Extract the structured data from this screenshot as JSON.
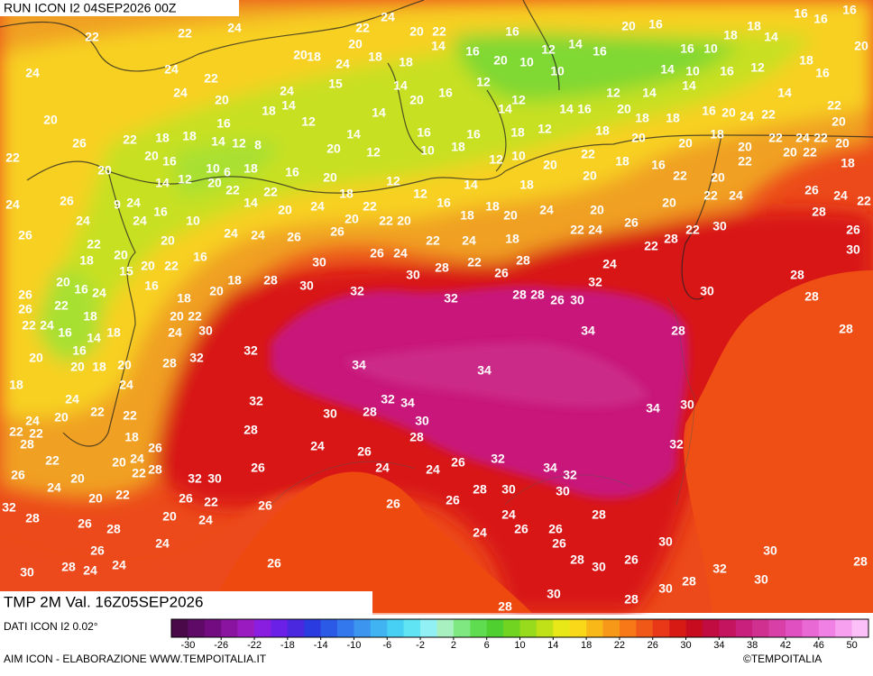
{
  "header": {
    "run": "RUN ICON I2 04SEP2026 00Z"
  },
  "footer": {
    "field": "TMP 2M Val. 16Z05SEP2026",
    "source": "DATI ICON I2 0.02°",
    "credit": "AIM ICON - ELABORAZIONE WWW.TEMPOITALIA.IT",
    "copyright": "©TEMPOITALIA"
  },
  "map_labels": [
    22,
    22,
    24,
    22,
    24,
    20,
    22,
    20,
    14,
    16,
    16,
    12,
    14,
    16,
    20,
    16,
    16,
    10,
    18,
    18,
    14,
    16,
    16,
    16,
    20,
    24,
    24,
    22,
    20,
    18,
    24,
    18,
    18,
    20,
    10,
    10,
    14,
    10,
    16,
    12,
    18,
    16,
    24,
    20,
    24,
    15,
    14,
    16,
    12,
    12,
    12,
    14,
    14,
    14,
    22,
    20,
    16,
    18,
    14,
    14,
    20,
    14,
    14,
    16,
    20,
    18,
    18,
    16,
    20,
    24,
    22,
    20,
    26,
    22,
    18,
    18,
    14,
    12,
    8,
    12,
    14,
    16,
    16,
    18,
    12,
    18,
    20,
    20,
    18,
    22,
    24,
    22,
    20,
    22,
    20,
    16,
    10,
    6,
    18,
    20,
    12,
    10,
    18,
    12,
    10,
    20,
    22,
    18,
    16,
    20,
    22,
    20,
    22,
    18,
    20,
    14,
    12,
    20,
    22,
    22,
    16,
    20,
    12,
    14,
    18,
    20,
    22,
    20,
    24,
    26,
    9,
    24,
    16,
    10,
    14,
    20,
    24,
    18,
    22,
    12,
    16,
    18,
    18,
    20,
    24,
    20,
    20,
    22,
    24,
    26,
    24,
    22,
    28,
    26,
    24,
    24,
    20,
    24,
    24,
    26,
    26,
    20,
    22,
    20,
    22,
    24,
    18,
    22,
    24,
    26,
    22,
    28,
    22,
    30,
    26,
    30,
    22,
    20,
    18,
    15,
    20,
    22,
    16,
    30,
    26,
    24,
    30,
    28,
    22,
    26,
    28,
    24,
    26,
    20,
    16,
    24,
    16,
    18,
    20,
    18,
    28,
    30,
    32,
    32,
    28,
    28,
    26,
    30,
    32,
    30,
    28,
    28,
    26,
    22,
    18,
    20,
    22,
    22,
    24,
    16,
    14,
    18,
    24,
    30,
    34,
    28,
    28,
    20,
    16,
    18,
    20,
    20,
    28,
    32,
    32,
    34,
    34,
    18,
    24,
    24,
    32,
    32,
    34,
    30,
    28,
    30,
    34,
    30,
    24,
    20,
    22,
    22,
    22,
    22,
    28,
    28,
    24,
    26,
    32,
    28,
    18,
    26,
    22,
    20,
    24,
    22,
    28,
    26,
    20,
    32,
    30,
    26,
    24,
    24,
    26,
    32,
    34,
    32,
    24,
    20,
    22,
    26,
    22,
    32,
    28,
    20,
    24,
    26,
    26,
    26,
    28,
    30,
    30,
    24,
    28,
    26,
    28,
    24,
    24,
    26,
    26,
    26,
    30,
    30,
    26,
    30,
    28,
    24,
    24,
    26,
    28,
    30,
    26,
    32,
    28,
    28,
    30,
    30,
    30,
    28,
    28
  ],
  "colorbar": {
    "lim": [
      -32,
      52
    ],
    "ticks": [
      -30,
      -26,
      -22,
      -18,
      -14,
      -10,
      -6,
      -2,
      2,
      6,
      10,
      14,
      18,
      22,
      26,
      30,
      34,
      38,
      42,
      46,
      50
    ],
    "colors": [
      "#4a0a4a",
      "#5e0a66",
      "#720c80",
      "#8a14a0",
      "#9a1cc0",
      "#8a1ee0",
      "#6a20e6",
      "#4a28e0",
      "#2a3ce0",
      "#2a5ae6",
      "#3478ee",
      "#3c96f0",
      "#40b4f2",
      "#48d0f4",
      "#60e4f4",
      "#90f0f4",
      "#a8f0c0",
      "#80e880",
      "#60dc50",
      "#50d030",
      "#70d420",
      "#98da1c",
      "#c0e018",
      "#e8e818",
      "#f8d818",
      "#f8b818",
      "#f89818",
      "#f87818",
      "#f05818",
      "#e83818",
      "#d81a14",
      "#c80c20",
      "#c00c40",
      "#c41460",
      "#c8207c",
      "#d03090",
      "#d840a8",
      "#e050c0",
      "#e868d4",
      "#f080e4",
      "#f8a0f0",
      "#fcc0f8"
    ]
  }
}
